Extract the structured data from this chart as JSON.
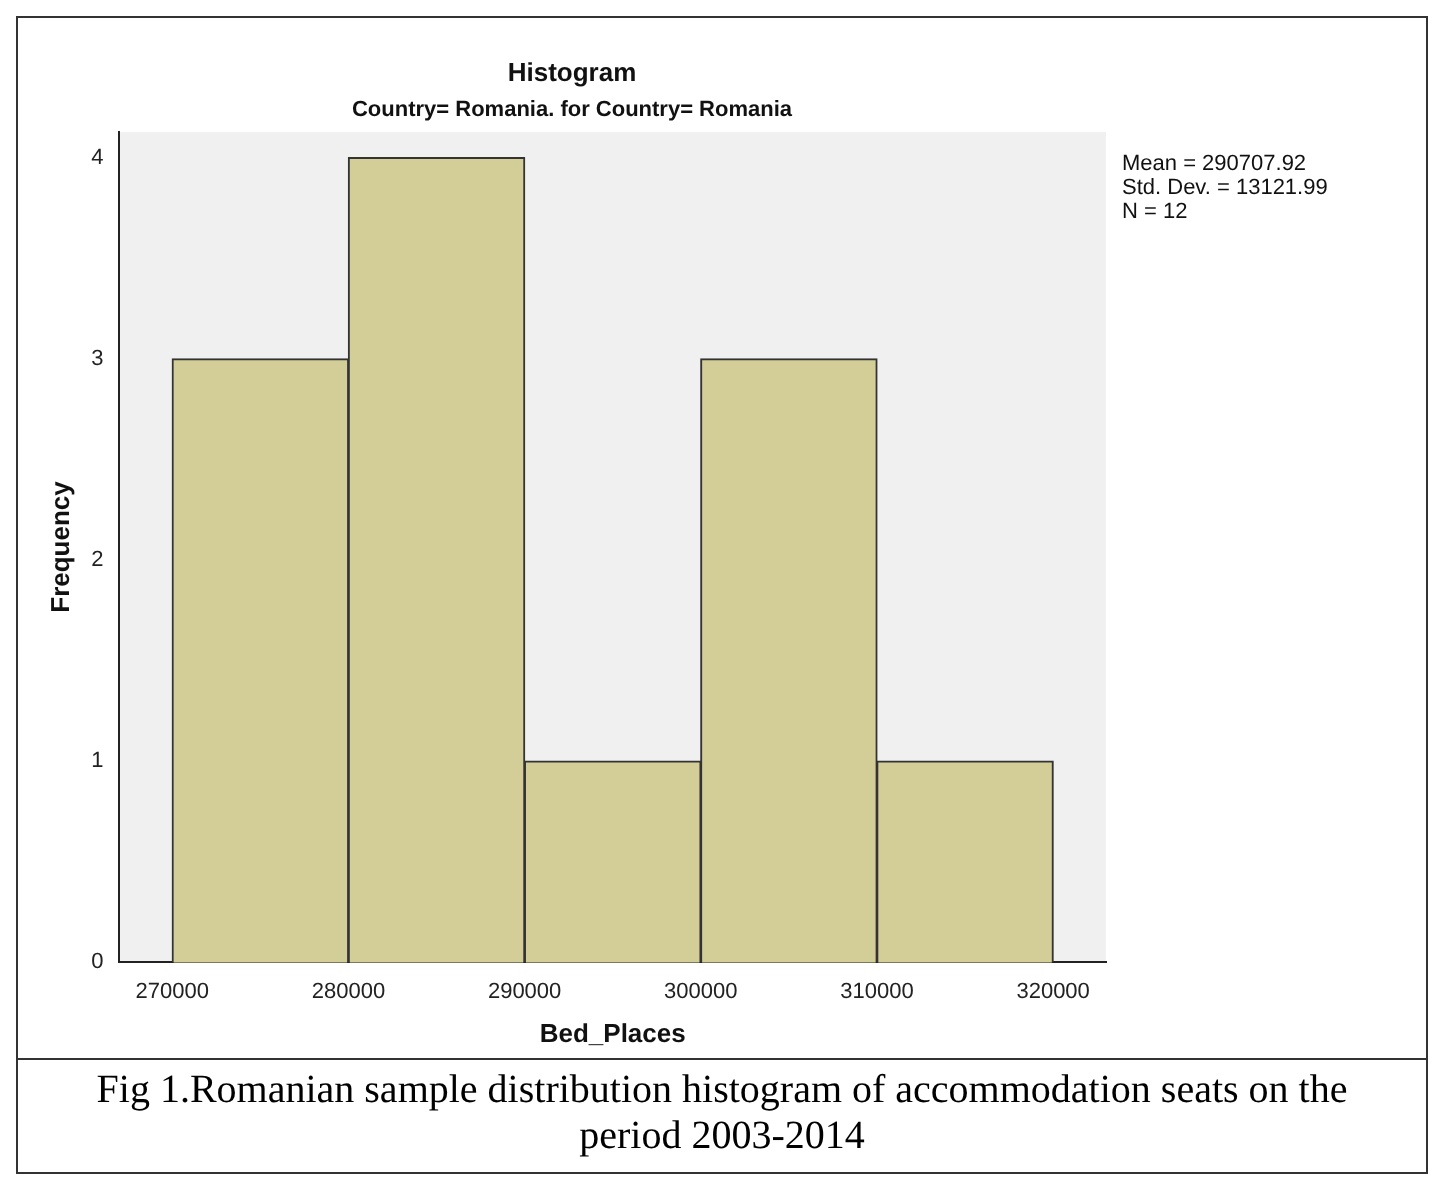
{
  "chart_data": {
    "type": "histogram",
    "title": "Histogram",
    "subtitle": "Country= Romania. for Country= Romania",
    "xlabel": "Bed_Places",
    "ylabel": "Frequency",
    "bins": [
      270000,
      280000,
      290000,
      300000,
      310000,
      320000
    ],
    "values": [
      3,
      4,
      1,
      3,
      1
    ],
    "color": "#d3ce98",
    "xlim": [
      267000,
      323000
    ],
    "xticks": [
      270000,
      280000,
      290000,
      300000,
      310000,
      320000
    ],
    "ylim": [
      0,
      4.13
    ],
    "yticks": [
      0,
      1,
      2,
      3,
      4
    ],
    "grid": false,
    "legend": false,
    "annotations": [
      "Mean = 290707.92",
      "Std. Dev. = 13121.99",
      "N = 12",
      "Fig 1.Romanian sample distribution histogram of accommodation seats on the period 2003-2014"
    ]
  }
}
